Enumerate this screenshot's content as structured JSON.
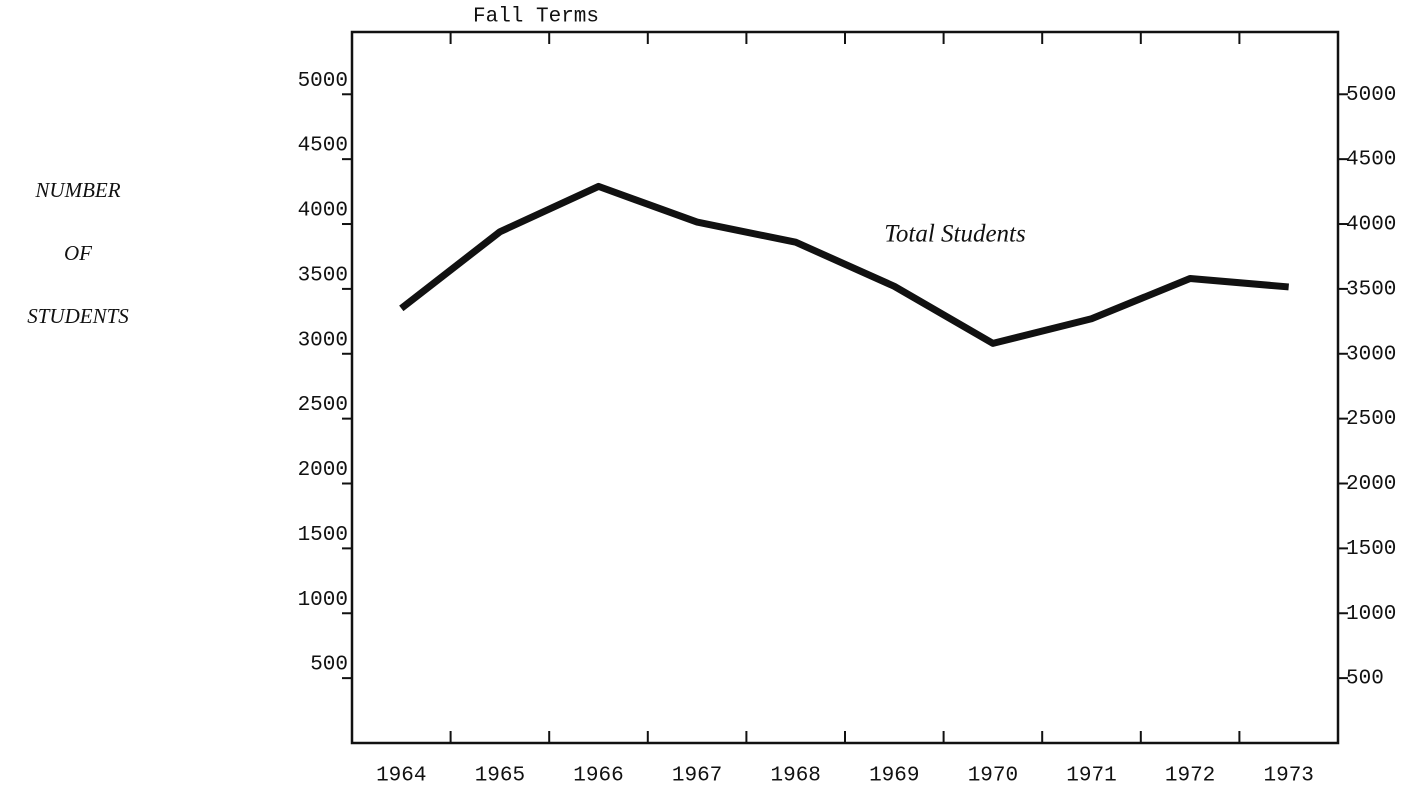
{
  "chart_data": {
    "type": "line",
    "title": "Fall Terms",
    "ylabel": [
      "NUMBER",
      "OF",
      "STUDENTS"
    ],
    "categories": [
      "1964",
      "1965",
      "1966",
      "1967",
      "1968",
      "1969",
      "1970",
      "1971",
      "1972",
      "1973"
    ],
    "series": [
      {
        "name": "Total Students",
        "color": "#111111",
        "values": [
          3350,
          3940,
          4290,
          4015,
          3860,
          3520,
          3080,
          3270,
          3580,
          3515
        ]
      }
    ],
    "ylim": [
      0,
      5480
    ],
    "yticks": [
      500,
      1000,
      1500,
      2000,
      2500,
      3000,
      3500,
      4000,
      4500,
      5000
    ],
    "right_axis": true,
    "grid": false
  }
}
